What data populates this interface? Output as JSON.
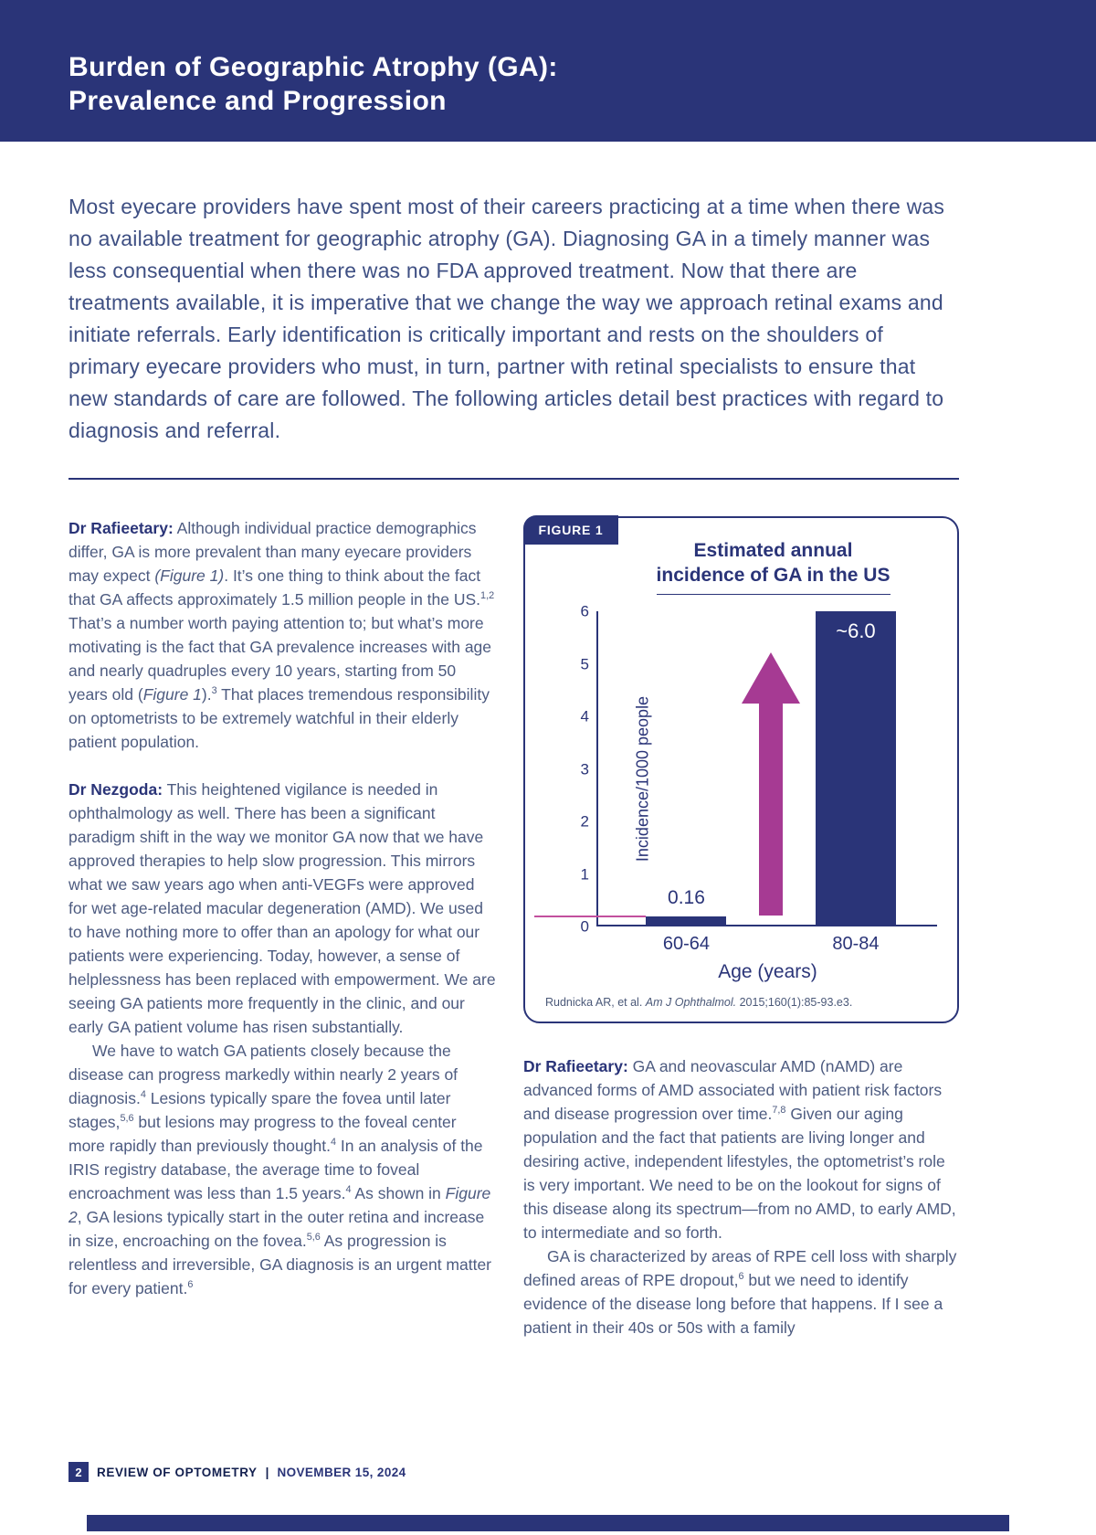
{
  "header": {
    "title_line1": "Burden of Geographic Atrophy (GA):",
    "title_line2": "Prevalence and Progression"
  },
  "intro": {
    "text": "Most eyecare providers have spent most of their careers practicing at a time when there was no available treatment for geographic atrophy (GA). Diagnosing GA in a timely manner was less consequential when there was no FDA approved treatment. Now that there are treatments available, it is imperative that we change the way we approach retinal exams and initiate referrals. Early identification is critically important and rests on the shoulders of primary eyecare providers who must, in turn, partner with retinal specialists to ensure that new standards of care are followed. The following articles detail best practices with regard to diagnosis and referral."
  },
  "left_column": {
    "para1": {
      "lead": "Dr Rafieetary:",
      "t1": " Although individual practice demographics differ, GA is more prevalent than many eyecare providers may expect ",
      "i1": "(Figure 1)",
      "t2": ". It’s one thing to think about the fact that GA affects approximately 1.5 million people in the US.",
      "s1": "1,2",
      "t3": " That’s a number worth paying attention to; but what’s more motivating is the fact that GA prevalence increases with age and nearly quadruples every 10 years, starting from 50 years old (",
      "i2": "Figure 1",
      "t4": ").",
      "s2": "3",
      "t5": " That places tremendous responsibility on optometrists to be extremely watchful in their elderly patient population."
    },
    "para2": {
      "lead": "Dr Nezgoda:",
      "t1": " This heightened vigilance is needed in ophthalmology as well. There has been a significant paradigm shift in the way we monitor GA now that we have approved therapies to help slow progression. This mirrors what we saw years ago when anti-VEGFs were approved for wet age-related macular degeneration (AMD). We used to have nothing more to offer than an apology for what our patients were experiencing. Today, however, a sense of helplessness has been replaced with empowerment. We are seeing GA patients more frequently in the clinic, and our early GA patient volume has risen substantially."
    },
    "para3": {
      "t1": "We have to watch GA patients closely because the disease can progress markedly within nearly 2 years of diagnosis.",
      "s1": "4",
      "t2": " Lesions typically spare the fovea until later stages,",
      "s2": "5,6",
      "t3": "  but lesions may progress to the foveal center more rapidly than previously thought.",
      "s3": "4",
      "t4": " In an analysis of the IRIS registry database, the average time to foveal encroachment was less than 1.5 years.",
      "s4": "4",
      "t5": " As shown in ",
      "i1": "Figure 2",
      "t6": ", GA lesions typically start in the outer retina and increase in size, encroaching on the fovea.",
      "s5": "5,6",
      "t7": " As progression is relentless and irreversible, GA diagnosis is an urgent matter for every patient.",
      "s6": "6"
    }
  },
  "right_column": {
    "para1": {
      "lead": "Dr Rafieetary:",
      "t1": " GA and neovascular AMD (nAMD) are advanced forms of AMD associated with patient risk factors and disease progression over time.",
      "s1": "7,8",
      "t2": " Given our aging population and the fact that patients are living longer and desiring active, independent lifestyles, the optometrist’s role is very important. We need to be on the lookout for signs of this disease along its spectrum—from no AMD, to early AMD, to intermediate and so forth."
    },
    "para2": {
      "t1": "GA is characterized by areas of RPE cell loss with sharply defined areas of RPE dropout,",
      "s1": "6",
      "t2": " but we need to identify evidence of the disease long before that happens. If I see a patient in their 40s or 50s with a family"
    }
  },
  "figure": {
    "tag": "FIGURE 1",
    "source_pre": "Rudnicka AR, et al. ",
    "source_italic": "Am J Ophthalmol.",
    "source_post": " 2015;160(1):85-93.e3."
  },
  "chart_data": {
    "type": "bar",
    "title": "Estimated annual incidence of GA in the US",
    "title_line1": "Estimated annual",
    "title_line2": "incidence of GA in the US",
    "categories": [
      "60-64",
      "80-84"
    ],
    "values": [
      0.16,
      6.0
    ],
    "value_labels": [
      "0.16",
      "~6.0"
    ],
    "xlabel": "Age (years)",
    "ylabel": "Incidence/1000 people",
    "ylim": [
      0,
      6
    ],
    "yticks": [
      0,
      1,
      2,
      3,
      4,
      5,
      6
    ],
    "grid": false,
    "legend": "none",
    "bar_color": "#2a3478",
    "arrow_color": "#a63a93",
    "annotation": "magenta upward arrow between bars indicating increase with age"
  },
  "footer": {
    "page": "2",
    "journal": "REVIEW OF OPTOMETRY",
    "sep": "|",
    "date": "NOVEMBER 15, 2024"
  },
  "colors": {
    "navy": "#2a3478",
    "body_text": "#4d5b80",
    "intro_text": "#3e4f83",
    "magenta": "#a63a93",
    "ref_line_pink": "#c2509e"
  }
}
